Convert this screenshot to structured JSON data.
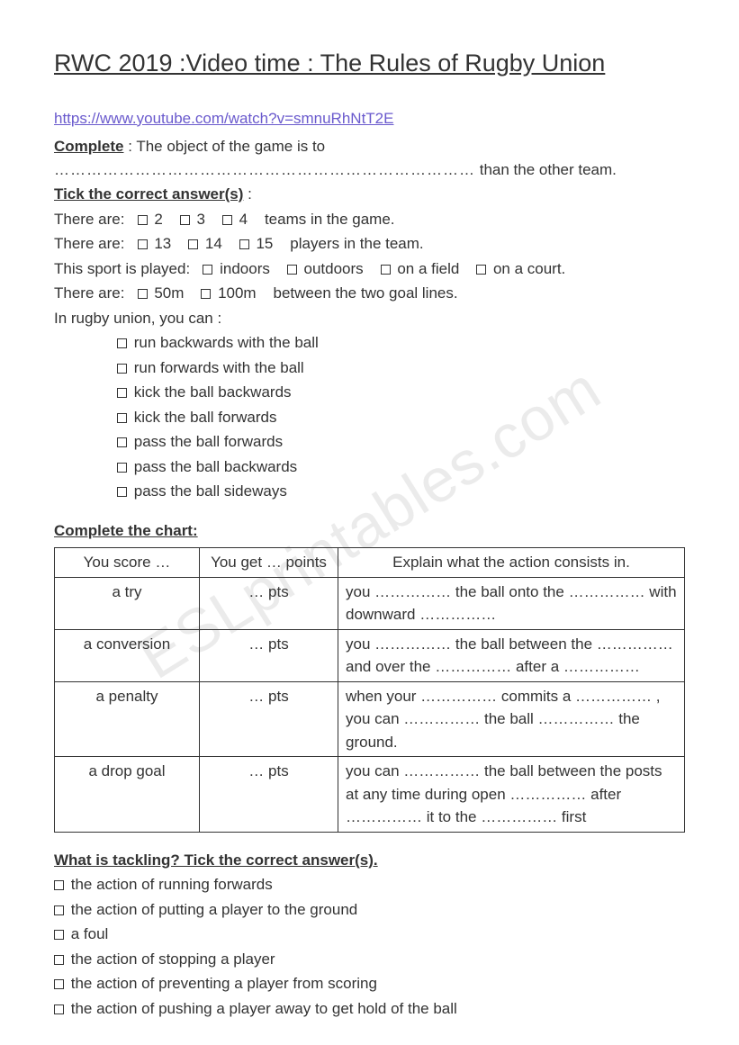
{
  "title": "RWC 2019 :Video time : The Rules of Rugby Union",
  "link": "https://www.youtube.com/watch?v=smnuRhNtT2E",
  "complete": {
    "label": "Complete",
    "text_before": " :  The object of the game is to ",
    "dots": "……………………………………………………………………",
    "text_after": " than the other team."
  },
  "tick": {
    "label": "Tick the correct answer(s)",
    "rows": [
      {
        "prefix": "There are:",
        "options": [
          "2",
          "3",
          "4"
        ],
        "suffix": "teams in the game."
      },
      {
        "prefix": "There are:",
        "options": [
          "13",
          "14",
          "15"
        ],
        "suffix": "players in the team."
      },
      {
        "prefix": "This sport is played:",
        "options": [
          "indoors",
          "outdoors",
          "on a field",
          "on a court."
        ],
        "suffix": ""
      },
      {
        "prefix": "There are:",
        "options": [
          "50m",
          "100m"
        ],
        "suffix": "between the two goal lines."
      }
    ],
    "union_label": "In rugby union, you can :",
    "union_options": [
      "run backwards with the ball",
      "run forwards with the ball",
      "kick the ball backwards",
      "kick the ball forwards",
      "pass the ball forwards",
      "pass the ball backwards",
      "pass the ball sideways"
    ]
  },
  "chart": {
    "heading": "Complete the chart:",
    "headers": [
      "You score …",
      "You get … points",
      "Explain what the action consists in."
    ],
    "rows": [
      {
        "score": "a try",
        "pts": "… pts",
        "explain": "you …………… the ball onto the …………… with downward ……………"
      },
      {
        "score": "a conversion",
        "pts": "… pts",
        "explain": "you …………… the ball between the …………… and over the …………… after a ……………"
      },
      {
        "score": "a penalty",
        "pts": "… pts",
        "explain": "when your …………… commits a …………… , you can …………… the ball …………… the ground."
      },
      {
        "score": "a drop goal",
        "pts": "… pts",
        "explain": "you can …………… the ball between the posts at any time during open ……………  after ……………  it to the ……………  first"
      }
    ]
  },
  "tackling": {
    "heading": "What is tackling? Tick the correct answer(s).",
    "options": [
      "the action of running forwards",
      "the action of putting a player to the ground",
      "a foul",
      "the action of stopping a player",
      "the action of preventing a player from scoring",
      "the action of pushing a player away to get hold of the ball"
    ]
  },
  "watermark": "ESLprintables.com",
  "colors": {
    "text": "#333333",
    "link": "#6a5acd",
    "background": "#ffffff",
    "watermark": "rgba(0,0,0,0.08)",
    "border": "#333333"
  },
  "typography": {
    "body_font": "Comic Sans MS",
    "body_size_pt": 13,
    "title_size_pt": 20
  }
}
